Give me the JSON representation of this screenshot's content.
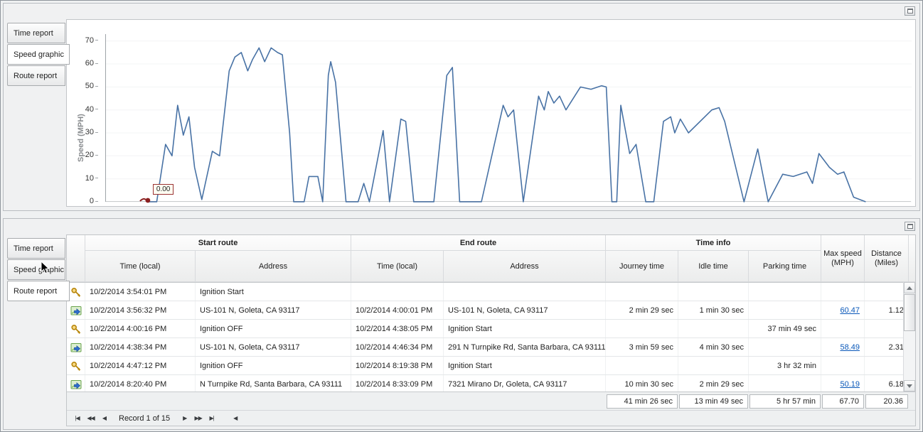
{
  "panels": {
    "top": {
      "tabs": [
        {
          "label": "Time report",
          "selected": false
        },
        {
          "label": "Speed graphic",
          "selected": true
        },
        {
          "label": "Route report",
          "selected": false
        }
      ]
    },
    "bottom": {
      "tabs": [
        {
          "label": "Time report",
          "selected": false
        },
        {
          "label": "Speed graphic",
          "selected": false
        },
        {
          "label": "Route report",
          "selected": true
        }
      ]
    }
  },
  "chart_data": {
    "type": "line",
    "ylabel": "Speed (MPH)",
    "ylim": [
      0,
      73
    ],
    "yticks": [
      0,
      10,
      20,
      30,
      40,
      50,
      60,
      70
    ],
    "line_color": "#4872a5",
    "grid": "faint-horizontal",
    "legend": "none",
    "marker": {
      "x": 5.2,
      "y": 0,
      "color": "#8b1f1f",
      "label": "0.00"
    },
    "points": [
      [
        5.2,
        0
      ],
      [
        6.3,
        0
      ],
      [
        7.4,
        25
      ],
      [
        8.2,
        20
      ],
      [
        8.9,
        42
      ],
      [
        9.6,
        29
      ],
      [
        10.3,
        37
      ],
      [
        11.0,
        15
      ],
      [
        11.9,
        1
      ],
      [
        13.2,
        22
      ],
      [
        14.1,
        20
      ],
      [
        15.3,
        57
      ],
      [
        16.0,
        63
      ],
      [
        16.8,
        65
      ],
      [
        17.6,
        57
      ],
      [
        18.2,
        62
      ],
      [
        19.0,
        67
      ],
      [
        19.7,
        61
      ],
      [
        20.5,
        67
      ],
      [
        21.3,
        65
      ],
      [
        21.9,
        64
      ],
      [
        22.8,
        30
      ],
      [
        23.3,
        0
      ],
      [
        24.6,
        0
      ],
      [
        25.2,
        11
      ],
      [
        26.3,
        11
      ],
      [
        26.9,
        0
      ],
      [
        27.6,
        55
      ],
      [
        27.9,
        61
      ],
      [
        28.5,
        52
      ],
      [
        29.8,
        0
      ],
      [
        31.3,
        0
      ],
      [
        32.0,
        8
      ],
      [
        32.7,
        0
      ],
      [
        34.4,
        31
      ],
      [
        35.2,
        0
      ],
      [
        36.6,
        36
      ],
      [
        37.2,
        35
      ],
      [
        38.2,
        0
      ],
      [
        40.7,
        0
      ],
      [
        42.3,
        55
      ],
      [
        43.0,
        58.5
      ],
      [
        43.9,
        0
      ],
      [
        46.6,
        0
      ],
      [
        49.3,
        42
      ],
      [
        49.9,
        37
      ],
      [
        50.6,
        40
      ],
      [
        51.8,
        0
      ],
      [
        53.7,
        46
      ],
      [
        54.4,
        40
      ],
      [
        54.9,
        48
      ],
      [
        55.6,
        43
      ],
      [
        56.3,
        46
      ],
      [
        57.1,
        40
      ],
      [
        58.9,
        50
      ],
      [
        60.2,
        49
      ],
      [
        61.5,
        50.5
      ],
      [
        62.1,
        50
      ],
      [
        62.8,
        0
      ],
      [
        63.4,
        0
      ],
      [
        63.9,
        42
      ],
      [
        65.0,
        21
      ],
      [
        65.8,
        25
      ],
      [
        67.0,
        0
      ],
      [
        68.0,
        0
      ],
      [
        69.2,
        35
      ],
      [
        70.1,
        37
      ],
      [
        70.6,
        30
      ],
      [
        71.3,
        36
      ],
      [
        72.3,
        30
      ],
      [
        75.2,
        40
      ],
      [
        76.1,
        41
      ],
      [
        76.8,
        35
      ],
      [
        79.2,
        0
      ],
      [
        80.9,
        23
      ],
      [
        82.2,
        0
      ],
      [
        84.0,
        12
      ],
      [
        85.3,
        11
      ],
      [
        87.0,
        13
      ],
      [
        87.7,
        8
      ],
      [
        88.5,
        21
      ],
      [
        89.8,
        15
      ],
      [
        90.8,
        12
      ],
      [
        91.6,
        13
      ],
      [
        92.8,
        2
      ],
      [
        94.3,
        0
      ]
    ]
  },
  "table": {
    "groups": [
      {
        "label": "Start route"
      },
      {
        "label": "End route"
      },
      {
        "label": "Time info"
      }
    ],
    "columns": [
      "Time (local)",
      "Address",
      "Time (local)",
      "Address",
      "Journey time",
      "Idle time",
      "Parking time"
    ],
    "merged_columns": [
      {
        "line1": "Max speed",
        "line2": "(MPH)"
      },
      {
        "line1": "Distance",
        "line2": "(Miles)"
      }
    ],
    "link_color": "#0a58b9",
    "rows": [
      {
        "icon": "key-icon",
        "start_time": "10/2/2014 3:54:01 PM",
        "start_address": "Ignition Start",
        "end_time": "",
        "end_address": "",
        "journey_time": "",
        "idle_time": "",
        "parking_time": "",
        "max_speed": "",
        "distance": ""
      },
      {
        "icon": "route-icon",
        "start_time": "10/2/2014 3:56:32 PM",
        "start_address": "US-101 N, Goleta, CA 93117",
        "end_time": "10/2/2014 4:00:01 PM",
        "end_address": "US-101 N, Goleta, CA 93117",
        "journey_time": "2 min 29 sec",
        "idle_time": "1 min 30 sec",
        "parking_time": "",
        "max_speed": "60.47",
        "distance": "1.12"
      },
      {
        "icon": "key-icon",
        "start_time": "10/2/2014 4:00:16 PM",
        "start_address": "Ignition OFF",
        "end_time": "10/2/2014 4:38:05 PM",
        "end_address": "Ignition Start",
        "journey_time": "",
        "idle_time": "",
        "parking_time": "37 min 49 sec",
        "max_speed": "",
        "distance": ""
      },
      {
        "icon": "route-icon",
        "start_time": "10/2/2014 4:38:34 PM",
        "start_address": "US-101 N, Goleta, CA 93117",
        "end_time": "10/2/2014 4:46:34 PM",
        "end_address": "291 N Turnpike Rd, Santa Barbara, CA 93111",
        "journey_time": "3 min 59 sec",
        "idle_time": "4 min 30 sec",
        "parking_time": "",
        "max_speed": "58.49",
        "distance": "2.31"
      },
      {
        "icon": "key-icon",
        "start_time": "10/2/2014 4:47:12 PM",
        "start_address": "Ignition OFF",
        "end_time": "10/2/2014 8:19:38 PM",
        "end_address": "Ignition Start",
        "journey_time": "",
        "idle_time": "",
        "parking_time": "3 hr 32 min",
        "max_speed": "",
        "distance": ""
      },
      {
        "icon": "route-icon",
        "start_time": "10/2/2014 8:20:40 PM",
        "start_address": "N Turnpike Rd, Santa Barbara, CA 93111",
        "end_time": "10/2/2014 8:33:09 PM",
        "end_address": "7321 Mirano Dr, Goleta, CA 93117",
        "journey_time": "10 min 30 sec",
        "idle_time": "2 min 29 sec",
        "parking_time": "",
        "max_speed": "50.19",
        "distance": "6.18"
      }
    ],
    "summary": {
      "journey_time": "41 min 26 sec",
      "idle_time": "13 min 49 sec",
      "parking_time": "5 hr 57 min",
      "max_speed": "67.70",
      "distance": "20.36"
    },
    "pager": {
      "first_label": "|◀",
      "prev_page_label": "◀◀",
      "prev_label": "◀",
      "record_label": "Record 1 of 15",
      "next_label": "▶",
      "next_page_label": "▶▶",
      "last_label": "▶|",
      "scroll_left_label": "◀"
    }
  }
}
